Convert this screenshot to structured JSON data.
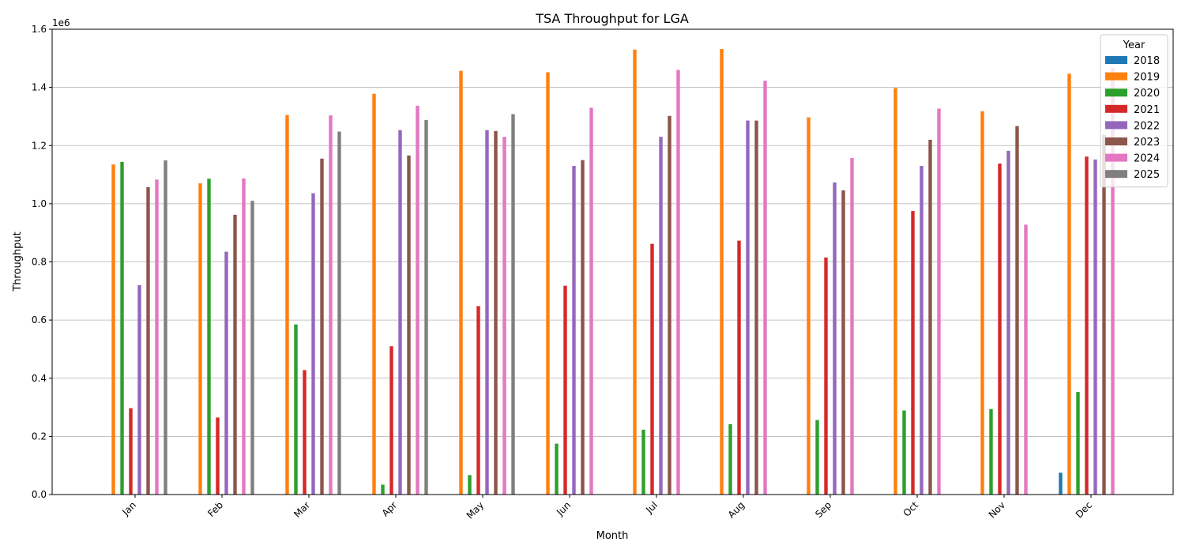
{
  "chart_data": {
    "type": "bar",
    "title": "TSA Throughput for LGA",
    "xlabel": "Month",
    "ylabel": "Throughput",
    "y_multiplier_label": "1e6",
    "ylim": [
      0,
      1600000
    ],
    "yticks": [
      0,
      200000,
      400000,
      600000,
      800000,
      1000000,
      1200000,
      1400000,
      1600000
    ],
    "ytick_labels": [
      "0.0",
      "0.2",
      "0.4",
      "0.6",
      "0.8",
      "1.0",
      "1.2",
      "1.4",
      "1.6"
    ],
    "grid": "y",
    "legend": {
      "title": "Year",
      "placement": "top-right"
    },
    "categories": [
      "Jan",
      "Feb",
      "Mar",
      "Apr",
      "May",
      "Jun",
      "Jul",
      "Aug",
      "Sep",
      "Oct",
      "Nov",
      "Dec"
    ],
    "series": [
      {
        "name": "2018",
        "color": "#1f77b4",
        "values": [
          null,
          null,
          null,
          null,
          null,
          null,
          null,
          null,
          null,
          null,
          null,
          75000
        ]
      },
      {
        "name": "2019",
        "color": "#ff7f0e",
        "values": [
          1135000,
          1070000,
          1305000,
          1378000,
          1457000,
          1452000,
          1530000,
          1532000,
          1297000,
          1398000,
          1318000,
          1447000
        ]
      },
      {
        "name": "2020",
        "color": "#2ca02c",
        "values": [
          1144000,
          1086000,
          585000,
          34000,
          67000,
          175000,
          223000,
          242000,
          256000,
          289000,
          294000,
          353000
        ]
      },
      {
        "name": "2021",
        "color": "#d62728",
        "values": [
          297000,
          265000,
          428000,
          510000,
          648000,
          718000,
          862000,
          873000,
          815000,
          975000,
          1138000,
          1162000
        ]
      },
      {
        "name": "2022",
        "color": "#9467bd",
        "values": [
          720000,
          835000,
          1036000,
          1253000,
          1253000,
          1130000,
          1230000,
          1286000,
          1073000,
          1130000,
          1182000,
          1152000
        ]
      },
      {
        "name": "2023",
        "color": "#8c564b",
        "values": [
          1057000,
          962000,
          1155000,
          1166000,
          1250000,
          1150000,
          1302000,
          1286000,
          1046000,
          1220000,
          1267000,
          1237000
        ]
      },
      {
        "name": "2024",
        "color": "#e377c2",
        "values": [
          1083000,
          1087000,
          1304000,
          1337000,
          1230000,
          1330000,
          1460000,
          1423000,
          1157000,
          1327000,
          928000,
          1467000
        ]
      },
      {
        "name": "2025",
        "color": "#7f7f7f",
        "values": [
          1149000,
          1010000,
          1248000,
          1288000,
          1308000,
          null,
          null,
          null,
          null,
          null,
          null,
          null
        ]
      }
    ]
  }
}
